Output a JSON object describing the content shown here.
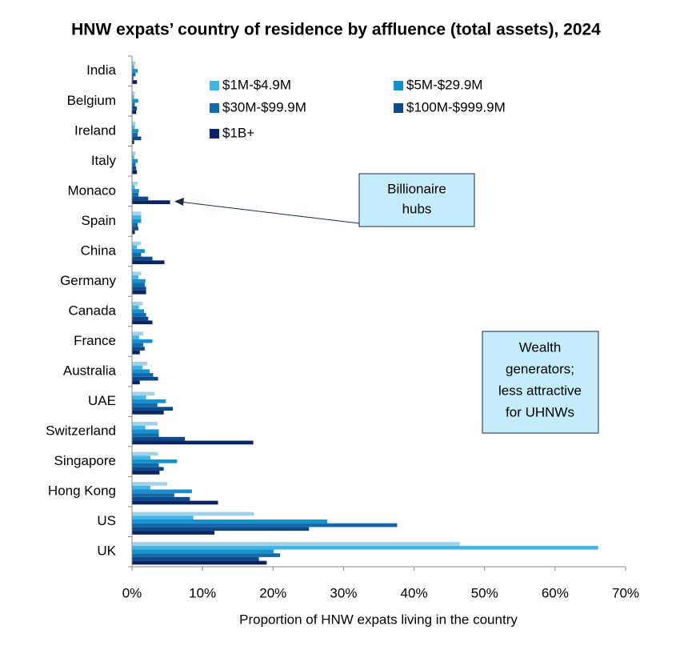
{
  "chart_data": {
    "type": "hbar",
    "title": "HNW expats’ country of residence by affluence (total assets), 2024",
    "x_label": "Proportion of HNW expats living in the country",
    "categories": [
      "India",
      "Belgium",
      "Ireland",
      "Italy",
      "Monaco",
      "Spain",
      "China",
      "Germany",
      "Canada",
      "France",
      "Australia",
      "UAE",
      "Switzerland",
      "Singapore",
      "Hong Kong",
      "US",
      "UK"
    ],
    "series": [
      {
        "color": "#a3d2e8",
        "values": [
          0.5,
          0.4,
          0.5,
          0.5,
          0.8,
          1.3,
          1.3,
          1.3,
          1.5,
          1.6,
          2.2,
          3.2,
          3.6,
          3.7,
          5.0,
          17.3,
          46.5
        ]
      },
      {
        "name": "$1M-$4.9M",
        "color": "#41b6e6",
        "values": [
          0.3,
          0.3,
          0.4,
          0.3,
          0.4,
          1.3,
          0.7,
          0.9,
          1.0,
          1.0,
          1.5,
          2.0,
          1.9,
          2.6,
          2.6,
          8.7,
          66.1
        ]
      },
      {
        "name": "$5M-$29.9M",
        "color": "#1591d0",
        "values": [
          0.8,
          0.9,
          0.9,
          0.8,
          1.0,
          1.3,
          1.8,
          1.9,
          1.7,
          2.9,
          2.5,
          4.8,
          3.8,
          6.4,
          8.5,
          27.7,
          20.1
        ]
      },
      {
        "name": "$30M-$99.9M",
        "color": "#136aa9",
        "values": [
          0.5,
          0.4,
          0.8,
          0.5,
          0.9,
          0.8,
          1.3,
          1.8,
          2.0,
          1.6,
          3.0,
          3.6,
          3.8,
          3.8,
          6.0,
          37.6,
          21.0
        ]
      },
      {
        "name": "$100M-$999.9M",
        "color": "#0e4a8a",
        "values": [
          0.2,
          0.7,
          1.3,
          0.6,
          2.3,
          0.9,
          2.9,
          2.0,
          2.3,
          1.8,
          3.7,
          5.8,
          7.5,
          4.5,
          8.2,
          25.1,
          18.0
        ]
      },
      {
        "name": "$1B+",
        "color": "#0a2463",
        "values": [
          0.7,
          0.6,
          0.3,
          0.7,
          5.4,
          0.4,
          4.6,
          2.0,
          2.9,
          1.1,
          1.1,
          4.5,
          17.2,
          3.9,
          12.2,
          11.7,
          19.1
        ]
      }
    ],
    "xlim": [
      0,
      70
    ],
    "xticks": [
      {
        "value": 0,
        "label": "0%"
      },
      {
        "value": 10,
        "label": "10%"
      },
      {
        "value": 20,
        "label": "20%"
      },
      {
        "value": 30,
        "label": "30%"
      },
      {
        "value": 40,
        "label": "40%"
      },
      {
        "value": 50,
        "label": "50%"
      },
      {
        "value": 60,
        "label": "60%"
      },
      {
        "value": 70,
        "label": "70%"
      }
    ],
    "annotations": [
      {
        "lines": [
          "Billionaire",
          "hubs"
        ]
      },
      {
        "lines": [
          "Wealth",
          "generators;",
          "less attractive",
          "for UHNWs"
        ]
      }
    ]
  }
}
